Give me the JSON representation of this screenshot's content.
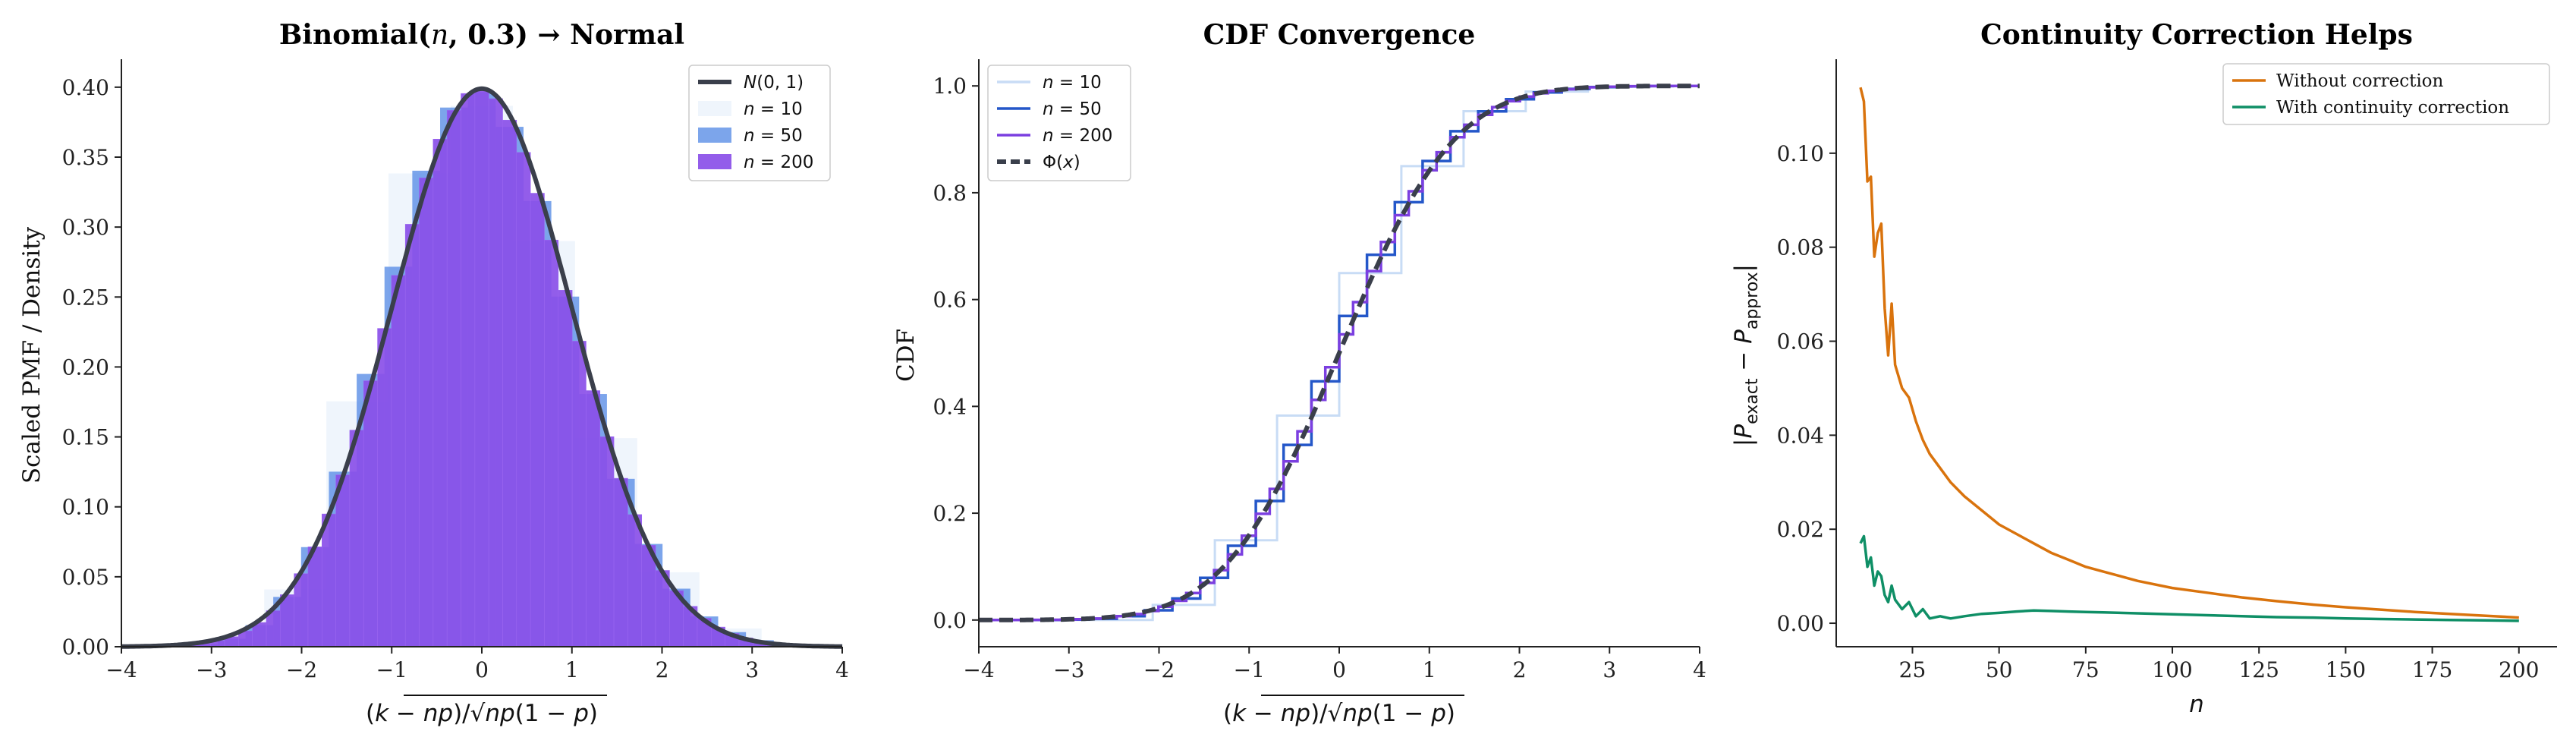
{
  "chart_data": [
    {
      "type": "bar",
      "title": "Binomial(n, 0.3) → Normal",
      "xlabel": "(k − np)/√np(1 − p)",
      "ylabel": "Scaled PMF / Density",
      "xlim": [
        -4,
        4
      ],
      "ylim": [
        0,
        0.42
      ],
      "xticks": [
        "−4",
        "−3",
        "−2",
        "−1",
        "0",
        "1",
        "2",
        "3",
        "4"
      ],
      "yticks": [
        "0.00",
        "0.05",
        "0.10",
        "0.15",
        "0.20",
        "0.25",
        "0.30",
        "0.35",
        "0.40"
      ],
      "p": 0.3,
      "series": [
        {
          "name": "N(0, 1)",
          "kind": "normal density curve",
          "color": "#3a3f4b"
        },
        {
          "name": "n = 10",
          "kind": "scaled binomial pmf",
          "n": 10,
          "color": "#dce8f8"
        },
        {
          "name": "n = 50",
          "kind": "scaled binomial pmf",
          "n": 50,
          "color": "#5b8fe6"
        },
        {
          "name": "n = 200",
          "kind": "scaled binomial pmf",
          "n": 200,
          "color": "#8a4fe8"
        }
      ],
      "legend": [
        {
          "prefix": "N",
          "mid": "(0, 1)",
          "var": ""
        },
        {
          "prefix": "",
          "mid": " = 10",
          "var": "n"
        },
        {
          "prefix": "",
          "mid": " = 50",
          "var": "n"
        },
        {
          "prefix": "",
          "mid": " = 200",
          "var": "n"
        }
      ],
      "legend_position": "top-right",
      "grid": false
    },
    {
      "type": "line",
      "title": "CDF Convergence",
      "xlabel": "(k − np)/√np(1 − p)",
      "ylabel": "CDF",
      "xlim": [
        -4,
        4
      ],
      "ylim": [
        -0.05,
        1.05
      ],
      "xticks": [
        "−4",
        "−3",
        "−2",
        "−1",
        "0",
        "1",
        "2",
        "3",
        "4"
      ],
      "yticks": [
        "0.0",
        "0.2",
        "0.4",
        "0.6",
        "0.8",
        "1.0"
      ],
      "series": [
        {
          "name": "n = 10",
          "kind": "binomial cdf (step)",
          "n": 10,
          "color": "#c8dcf5"
        },
        {
          "name": "n = 50",
          "kind": "binomial cdf (step)",
          "n": 50,
          "color": "#2457c9"
        },
        {
          "name": "n = 200",
          "kind": "binomial cdf (step)",
          "n": 200,
          "color": "#7b3fe0"
        },
        {
          "name": "Φ(x)",
          "kind": "normal cdf (dashed)",
          "color": "#3a3f4b"
        }
      ],
      "legend": [
        {
          "prefix": "",
          "mid": " = 10",
          "var": "n"
        },
        {
          "prefix": "",
          "mid": " = 50",
          "var": "n"
        },
        {
          "prefix": "",
          "mid": " = 200",
          "var": "n"
        },
        {
          "prefix": "Φ(",
          "mid": ")",
          "var": "x"
        }
      ],
      "legend_position": "top-left",
      "grid": false
    },
    {
      "type": "line",
      "title": "Continuity Correction Helps",
      "xlabel": "n",
      "ylabel": "|P_exact − P_approx|",
      "xlim": [
        3,
        211
      ],
      "ylim": [
        -0.005,
        0.12
      ],
      "xticks": [
        "25",
        "50",
        "75",
        "100",
        "125",
        "150",
        "175",
        "200"
      ],
      "yticks": [
        "0.00",
        "0.02",
        "0.04",
        "0.06",
        "0.08",
        "0.10"
      ],
      "x": [
        10,
        11,
        12,
        13,
        14,
        15,
        16,
        17,
        18,
        19,
        20,
        22,
        24,
        26,
        28,
        30,
        33,
        36,
        40,
        45,
        50,
        55,
        60,
        65,
        70,
        75,
        80,
        90,
        100,
        110,
        120,
        130,
        140,
        150,
        160,
        170,
        180,
        190,
        200
      ],
      "series": [
        {
          "name": "Without correction",
          "color": "#d9730d",
          "values": [
            0.114,
            0.111,
            0.094,
            0.095,
            0.078,
            0.083,
            0.085,
            0.067,
            0.057,
            0.068,
            0.055,
            0.05,
            0.048,
            0.043,
            0.039,
            0.036,
            0.033,
            0.03,
            0.027,
            0.024,
            0.021,
            0.019,
            0.017,
            0.015,
            0.0135,
            0.012,
            0.011,
            0.009,
            0.0075,
            0.0065,
            0.0055,
            0.0047,
            0.004,
            0.0034,
            0.0029,
            0.0024,
            0.002,
            0.0016,
            0.0012
          ]
        },
        {
          "name": "With continuity correction",
          "color": "#0f8f66",
          "values": [
            0.017,
            0.0185,
            0.012,
            0.014,
            0.008,
            0.011,
            0.01,
            0.006,
            0.0045,
            0.008,
            0.005,
            0.003,
            0.0045,
            0.0015,
            0.003,
            0.001,
            0.0015,
            0.001,
            0.0015,
            0.002,
            0.0022,
            0.0025,
            0.0027,
            0.0026,
            0.0025,
            0.0024,
            0.0023,
            0.0021,
            0.0019,
            0.0017,
            0.0015,
            0.0013,
            0.0012,
            0.001,
            0.0009,
            0.0008,
            0.0007,
            0.0006,
            0.0005
          ]
        }
      ],
      "legend_position": "top-right",
      "grid": false
    }
  ]
}
